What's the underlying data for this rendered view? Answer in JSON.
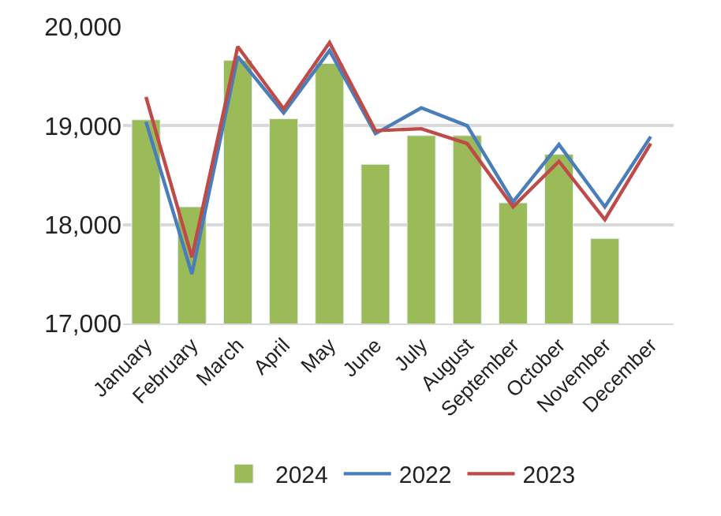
{
  "chart_data": {
    "type": "bar",
    "categories": [
      "January",
      "February",
      "March",
      "April",
      "May",
      "June",
      "July",
      "August",
      "September",
      "October",
      "November",
      "December"
    ],
    "series": [
      {
        "name": "2024",
        "color": "#9bbb59",
        "values": [
          19060,
          18180,
          19660,
          19070,
          19630,
          18610,
          18900,
          18900,
          18220,
          18710,
          17860,
          null
        ]
      },
      {
        "name": "2022",
        "type": "line",
        "color": "#4a7ebb",
        "values": [
          19040,
          17500,
          19700,
          19130,
          19760,
          18920,
          19180,
          19000,
          18230,
          18810,
          18180,
          18890
        ]
      },
      {
        "name": "2023",
        "type": "line",
        "color": "#be4b48",
        "values": [
          19290,
          17670,
          19800,
          19170,
          19840,
          18950,
          18970,
          18820,
          18180,
          18640,
          18050,
          18820
        ]
      }
    ],
    "ylim": [
      17000,
      20000
    ],
    "yticks": [
      {
        "value": 17000,
        "label": "17,000"
      },
      {
        "value": 18000,
        "label": "18,000"
      },
      {
        "value": 19000,
        "label": "19,000"
      },
      {
        "value": 20000,
        "label": "20,000"
      }
    ],
    "grid": "y",
    "legend": "bottom",
    "marker": "none",
    "line_style": "solid"
  }
}
